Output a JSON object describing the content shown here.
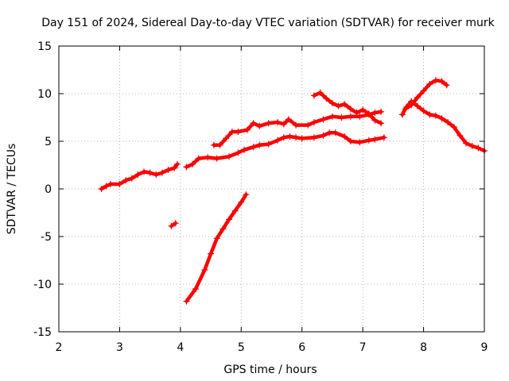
{
  "chart_data": {
    "type": "scatter",
    "title": "Day 151 of 2024, Sidereal Day-to-day VTEC variation (SDTVAR) for receiver murk",
    "xlabel": "GPS time / hours",
    "ylabel": "SDTVAR / TECUs",
    "xlim": [
      2,
      9
    ],
    "ylim": [
      -15,
      15
    ],
    "xticks": [
      "2",
      "3",
      "4",
      "5",
      "6",
      "7",
      "8",
      "9"
    ],
    "yticks": [
      "-15",
      "-10",
      "-5",
      "0",
      "5",
      "10",
      "15"
    ],
    "grid": true,
    "legend": "none",
    "marker": "plus",
    "color": "#ff0000",
    "series": [
      {
        "points": [
          [
            2.7,
            0.0
          ],
          [
            2.78,
            0.3
          ],
          [
            2.85,
            0.5
          ],
          [
            3.0,
            0.5
          ],
          [
            3.1,
            0.9
          ],
          [
            3.2,
            1.1
          ],
          [
            3.3,
            1.5
          ],
          [
            3.4,
            1.8
          ],
          [
            3.5,
            1.7
          ],
          [
            3.6,
            1.5
          ],
          [
            3.7,
            1.7
          ],
          [
            3.8,
            2.0
          ],
          [
            3.9,
            2.2
          ],
          [
            3.95,
            2.6
          ]
        ]
      },
      {
        "points": [
          [
            3.85,
            -3.9
          ],
          [
            3.92,
            -3.6
          ]
        ]
      },
      {
        "points": [
          [
            4.1,
            2.3
          ],
          [
            4.2,
            2.6
          ],
          [
            4.3,
            3.2
          ],
          [
            4.45,
            3.3
          ],
          [
            4.6,
            3.2
          ],
          [
            4.8,
            3.4
          ],
          [
            4.95,
            3.8
          ],
          [
            5.05,
            4.1
          ],
          [
            5.2,
            4.4
          ],
          [
            5.3,
            4.6
          ],
          [
            5.45,
            4.7
          ],
          [
            5.6,
            5.1
          ],
          [
            5.7,
            5.4
          ],
          [
            5.8,
            5.5
          ],
          [
            5.9,
            5.4
          ],
          [
            6.0,
            5.3
          ],
          [
            6.2,
            5.4
          ],
          [
            6.35,
            5.6
          ],
          [
            6.45,
            5.9
          ],
          [
            6.55,
            5.9
          ],
          [
            6.7,
            5.5
          ],
          [
            6.8,
            5.0
          ],
          [
            6.95,
            4.9
          ],
          [
            7.1,
            5.1
          ],
          [
            7.2,
            5.2
          ],
          [
            7.35,
            5.4
          ]
        ]
      },
      {
        "points": [
          [
            4.55,
            4.6
          ],
          [
            4.65,
            4.6
          ],
          [
            4.75,
            5.3
          ],
          [
            4.85,
            6.0
          ],
          [
            4.95,
            6.0
          ],
          [
            5.1,
            6.2
          ],
          [
            5.2,
            6.9
          ],
          [
            5.3,
            6.6
          ],
          [
            5.45,
            6.9
          ],
          [
            5.6,
            7.0
          ],
          [
            5.7,
            6.8
          ],
          [
            5.78,
            7.3
          ],
          [
            5.9,
            6.7
          ],
          [
            6.1,
            6.7
          ],
          [
            6.2,
            7.0
          ],
          [
            6.35,
            7.3
          ],
          [
            6.5,
            7.6
          ],
          [
            6.65,
            7.5
          ],
          [
            6.8,
            7.6
          ],
          [
            6.95,
            7.6
          ],
          [
            7.1,
            7.8
          ],
          [
            7.2,
            8.0
          ],
          [
            7.3,
            8.1
          ]
        ]
      },
      {
        "points": [
          [
            6.2,
            9.8
          ],
          [
            6.3,
            10.1
          ],
          [
            6.4,
            9.5
          ],
          [
            6.5,
            9.0
          ],
          [
            6.6,
            8.7
          ],
          [
            6.7,
            8.9
          ],
          [
            6.8,
            8.4
          ],
          [
            6.9,
            8.0
          ],
          [
            7.0,
            8.3
          ],
          [
            7.1,
            7.9
          ],
          [
            7.2,
            7.2
          ],
          [
            7.3,
            6.9
          ]
        ]
      },
      {
        "points": [
          [
            4.1,
            -11.8
          ],
          [
            4.25,
            -10.5
          ],
          [
            4.4,
            -8.5
          ],
          [
            4.5,
            -6.8
          ],
          [
            4.6,
            -5.2
          ],
          [
            4.7,
            -4.2
          ],
          [
            4.8,
            -3.2
          ],
          [
            4.9,
            -2.3
          ],
          [
            5.0,
            -1.4
          ],
          [
            5.08,
            -0.6
          ]
        ]
      },
      {
        "points": [
          [
            7.65,
            7.8
          ],
          [
            7.7,
            8.4
          ],
          [
            7.8,
            8.8
          ],
          [
            7.9,
            9.6
          ],
          [
            8.0,
            10.3
          ],
          [
            8.1,
            11.0
          ],
          [
            8.2,
            11.4
          ],
          [
            8.3,
            11.3
          ],
          [
            8.38,
            10.9
          ]
        ]
      },
      {
        "points": [
          [
            7.72,
            8.6
          ],
          [
            7.8,
            9.2
          ],
          [
            7.9,
            8.7
          ],
          [
            8.0,
            8.2
          ],
          [
            8.1,
            7.8
          ],
          [
            8.2,
            7.7
          ],
          [
            8.3,
            7.4
          ],
          [
            8.4,
            7.0
          ],
          [
            8.5,
            6.5
          ],
          [
            8.6,
            5.6
          ],
          [
            8.7,
            4.8
          ],
          [
            8.8,
            4.5
          ],
          [
            8.9,
            4.3
          ],
          [
            9.0,
            4.0
          ]
        ]
      }
    ]
  }
}
